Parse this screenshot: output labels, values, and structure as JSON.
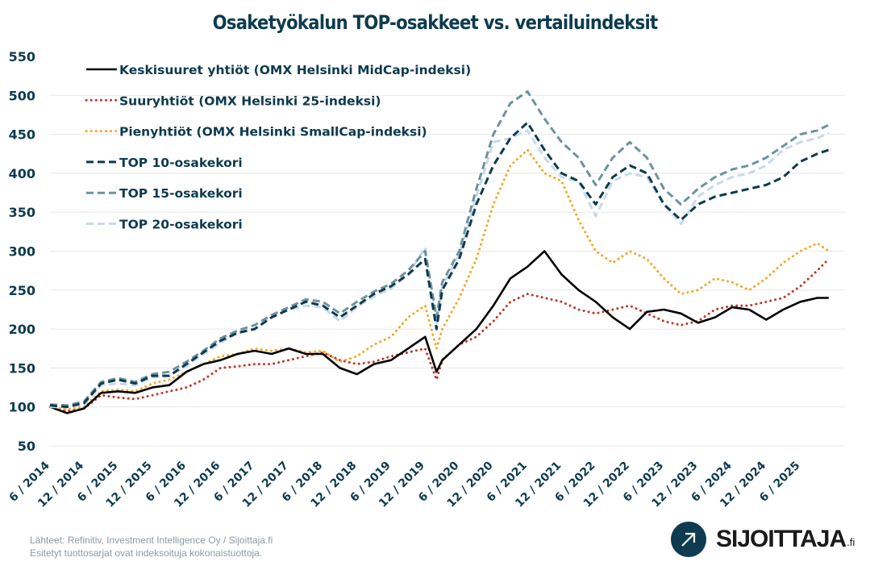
{
  "chart_data": {
    "type": "line",
    "title": "Osaketyökalun TOP-osakkeet vs. vertailuindeksit",
    "xlabel": "",
    "ylabel": "",
    "ylim": [
      50,
      550
    ],
    "yticks": [
      50,
      100,
      150,
      200,
      250,
      300,
      350,
      400,
      450,
      500,
      550
    ],
    "grid": true,
    "legend_position": "top-left",
    "x_tick_labels": [
      "6 / 2014",
      "12 / 2014",
      "6 / 2015",
      "12 / 2015",
      "6 / 2016",
      "12 / 2016",
      "6 / 2017",
      "12 / 2017",
      "6 / 2018",
      "12 / 2018",
      "6 / 2019",
      "12 / 2019",
      "6 / 2020",
      "12 / 2020",
      "6 / 2021",
      "12 / 2021",
      "6 / 2022",
      "12 / 2022",
      "6 / 2023",
      "12 / 2023",
      "6 / 2024",
      "12 / 2024",
      "6 / 2025"
    ],
    "x": [
      "6/2014",
      "9/2014",
      "12/2014",
      "3/2015",
      "6/2015",
      "9/2015",
      "12/2015",
      "3/2016",
      "6/2016",
      "9/2016",
      "12/2016",
      "3/2017",
      "6/2017",
      "9/2017",
      "12/2017",
      "3/2018",
      "6/2018",
      "9/2018",
      "12/2018",
      "3/2019",
      "6/2019",
      "9/2019",
      "12/2019",
      "2/2020",
      "3/2020",
      "6/2020",
      "9/2020",
      "12/2020",
      "3/2021",
      "6/2021",
      "9/2021",
      "12/2021",
      "3/2022",
      "6/2022",
      "9/2022",
      "12/2022",
      "3/2023",
      "6/2023",
      "9/2023",
      "12/2023",
      "3/2024",
      "6/2024",
      "9/2024",
      "12/2024",
      "3/2025",
      "6/2025",
      "9/2025",
      "11/2025"
    ],
    "series": [
      {
        "name": "Keskisuuret yhtiöt (OMX Helsinki MidCap-indeksi)",
        "style": "solid",
        "color": "#000000",
        "values": [
          100,
          92,
          98,
          118,
          120,
          118,
          125,
          128,
          145,
          155,
          160,
          168,
          172,
          168,
          175,
          168,
          168,
          150,
          142,
          155,
          160,
          175,
          190,
          145,
          160,
          180,
          200,
          230,
          265,
          280,
          300,
          270,
          250,
          235,
          215,
          200,
          222,
          225,
          220,
          208,
          215,
          228,
          225,
          212,
          225,
          235,
          240,
          240
        ]
      },
      {
        "name": "Suuryhtiöt (OMX Helsinki 25-indeksi)",
        "style": "dotted",
        "color": "#c0392b",
        "values": [
          100,
          95,
          98,
          115,
          112,
          110,
          115,
          120,
          125,
          135,
          150,
          152,
          155,
          155,
          160,
          165,
          170,
          160,
          155,
          158,
          165,
          170,
          175,
          135,
          160,
          180,
          190,
          210,
          235,
          245,
          240,
          235,
          225,
          220,
          225,
          230,
          220,
          210,
          205,
          210,
          225,
          230,
          230,
          235,
          240,
          255,
          275,
          290
        ]
      },
      {
        "name": "Pienyhtiöt (OMX Helsinki SmallCap-indeksi)",
        "style": "dotted",
        "color": "#f5a623",
        "values": [
          100,
          97,
          100,
          120,
          122,
          120,
          130,
          135,
          145,
          155,
          165,
          168,
          175,
          172,
          175,
          170,
          172,
          158,
          165,
          180,
          190,
          215,
          230,
          175,
          200,
          240,
          290,
          360,
          410,
          430,
          400,
          390,
          340,
          300,
          285,
          300,
          290,
          265,
          245,
          250,
          265,
          260,
          250,
          265,
          285,
          300,
          310,
          300
        ]
      },
      {
        "name": "TOP 10-osakekori",
        "style": "dashed",
        "color": "#0d3b4f",
        "values": [
          102,
          100,
          105,
          130,
          135,
          130,
          140,
          140,
          155,
          170,
          185,
          195,
          200,
          215,
          225,
          235,
          230,
          215,
          230,
          245,
          255,
          270,
          290,
          200,
          250,
          290,
          360,
          410,
          445,
          465,
          430,
          400,
          390,
          360,
          395,
          410,
          400,
          360,
          340,
          360,
          370,
          375,
          380,
          385,
          395,
          415,
          425,
          430
        ]
      },
      {
        "name": "TOP 15-osakekori",
        "style": "dashed",
        "color": "#6f929e",
        "values": [
          103,
          102,
          107,
          132,
          137,
          132,
          142,
          145,
          158,
          172,
          188,
          198,
          205,
          218,
          228,
          238,
          235,
          220,
          235,
          248,
          258,
          275,
          300,
          215,
          260,
          300,
          380,
          450,
          490,
          505,
          470,
          440,
          420,
          385,
          420,
          440,
          420,
          380,
          360,
          380,
          395,
          405,
          410,
          420,
          435,
          450,
          455,
          462
        ]
      },
      {
        "name": "TOP 20-osakekori",
        "style": "dashed",
        "color": "#c6d9ee",
        "values": [
          100,
          100,
          103,
          128,
          130,
          128,
          138,
          140,
          152,
          168,
          182,
          195,
          200,
          215,
          225,
          230,
          228,
          210,
          228,
          242,
          252,
          270,
          305,
          205,
          255,
          295,
          370,
          440,
          445,
          455,
          420,
          395,
          390,
          345,
          390,
          400,
          395,
          360,
          335,
          370,
          385,
          395,
          400,
          410,
          430,
          440,
          445,
          452
        ]
      }
    ]
  },
  "footer": {
    "line1": "Lähteet: Refinitiv, Investment Intelligence Oy / Sijoittaja.fi",
    "line2": "Esitetyt tuottosarjat ovat indeksoituja kokonaistuottoja."
  },
  "logo": {
    "icon": "arrow-up-right-icon",
    "text": "SIJOITTAJA",
    "suffix": ".fi"
  }
}
